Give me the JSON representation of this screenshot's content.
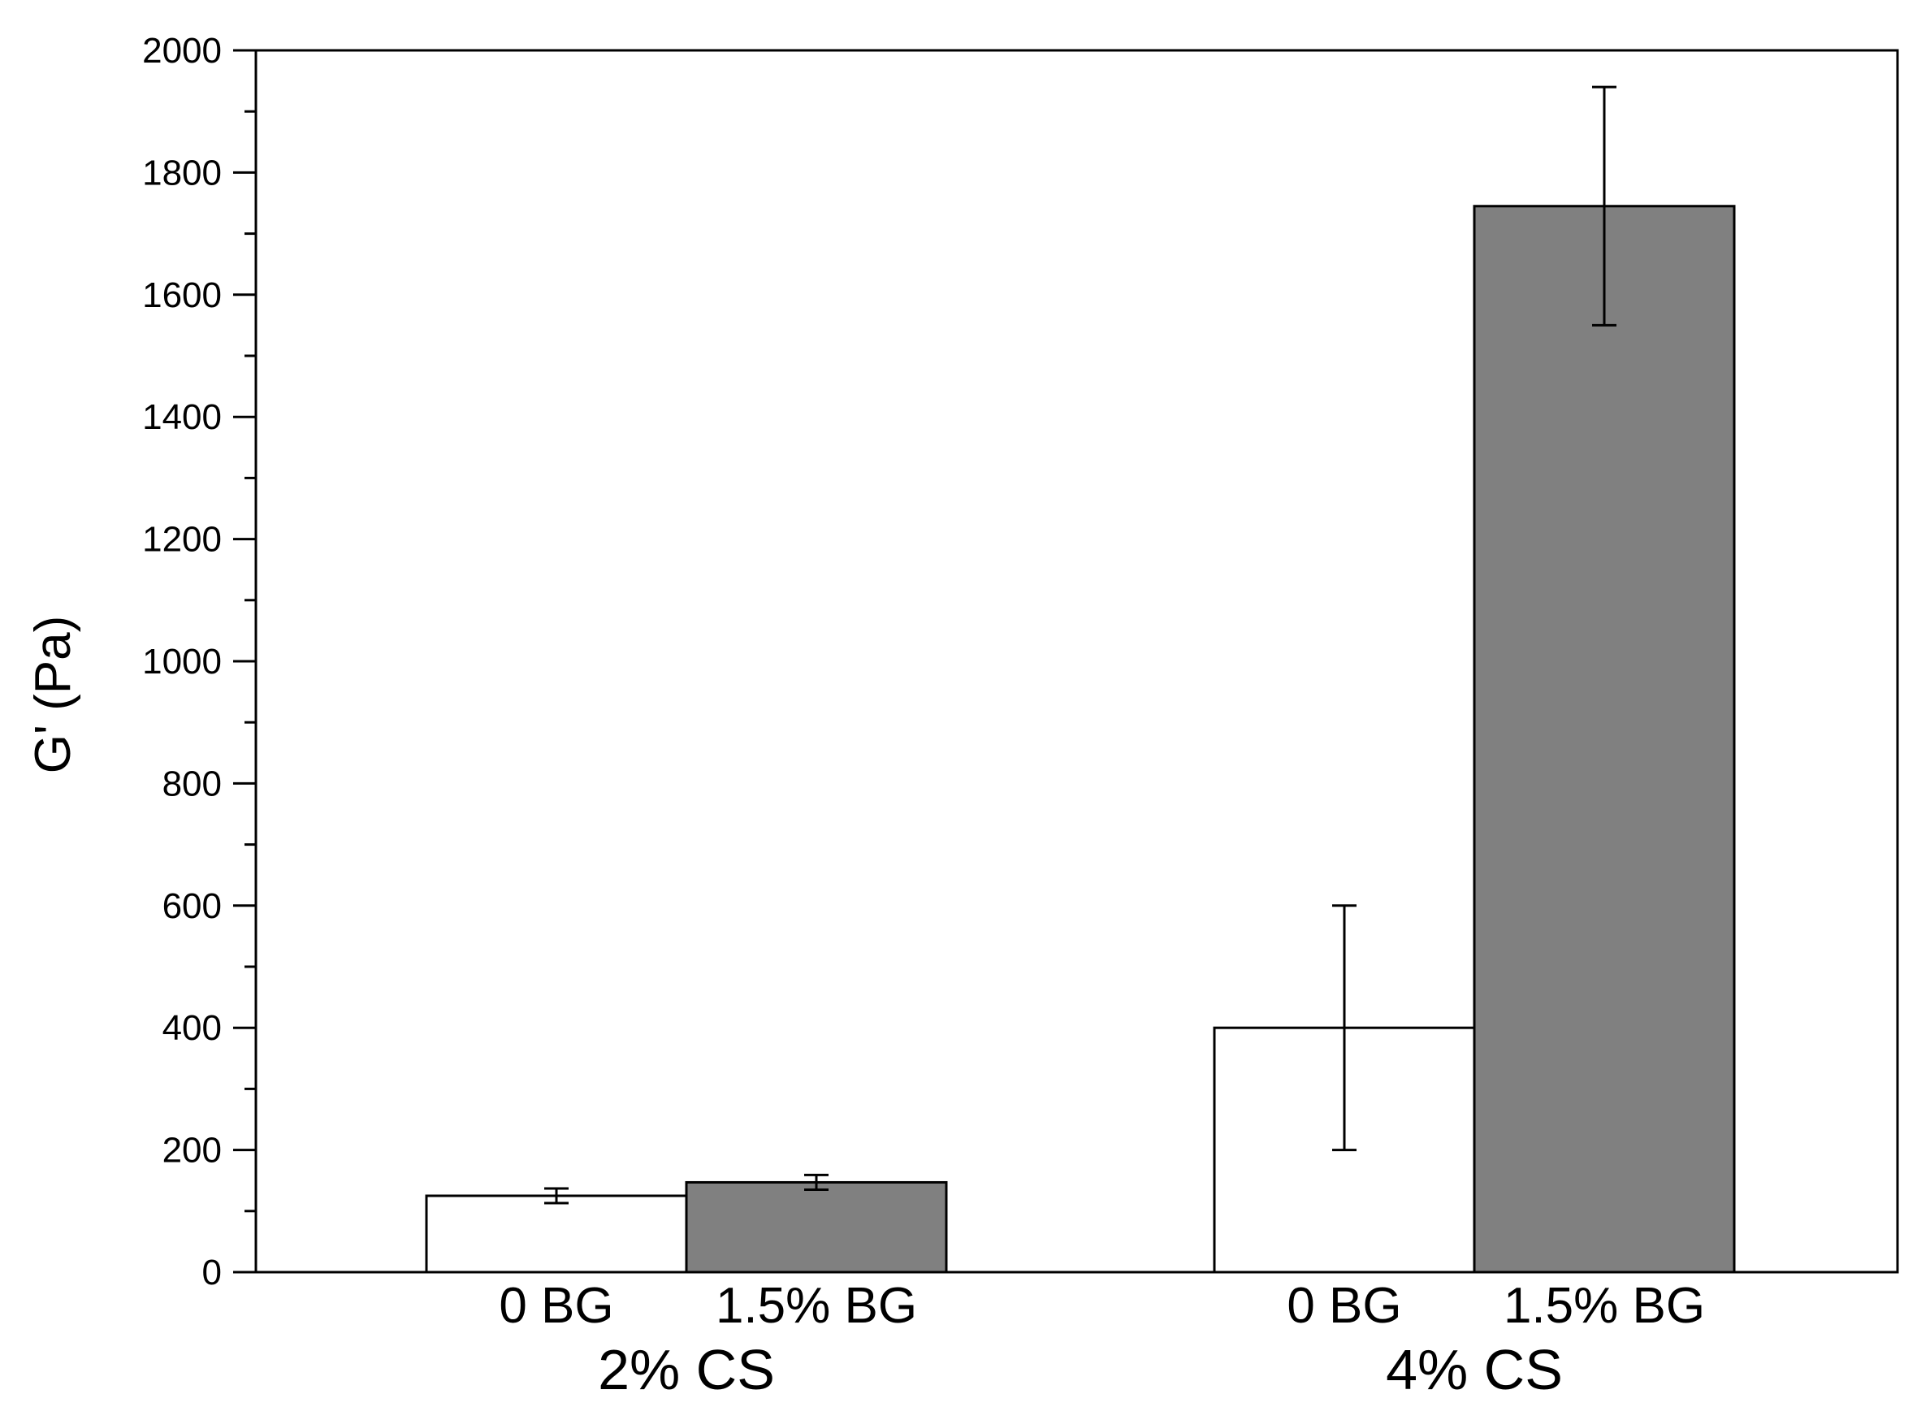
{
  "chart_data": {
    "type": "bar",
    "title": "",
    "ylabel": "G' (Pa)",
    "xlabel": "",
    "ylim": [
      0,
      2000
    ],
    "yticks": [
      0,
      200,
      400,
      600,
      800,
      1000,
      1200,
      1400,
      1600,
      1800,
      2000
    ],
    "y_minor_step": 100,
    "grid": false,
    "legend": "none",
    "groups": [
      {
        "label": "2% CS",
        "bars": [
          {
            "label": "0 BG",
            "value": 125,
            "error": 12,
            "color": "#ffffff"
          },
          {
            "label": "1.5% BG",
            "value": 147,
            "error": 12,
            "color": "#808080"
          }
        ]
      },
      {
        "label": "4% CS",
        "bars": [
          {
            "label": "0 BG",
            "value": 400,
            "error": 200,
            "color": "#ffffff"
          },
          {
            "label": "1.5% BG",
            "value": 1745,
            "error": 195,
            "color": "#808080"
          }
        ]
      }
    ]
  }
}
